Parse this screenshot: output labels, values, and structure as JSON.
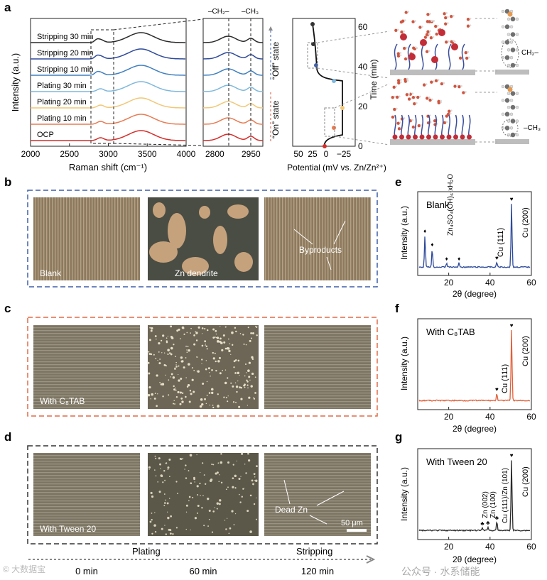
{
  "panel_letters": {
    "a": "a",
    "b": "b",
    "c": "c",
    "d": "d",
    "e": "e",
    "f": "f",
    "g": "g"
  },
  "panel_a": {
    "ylabel": "Intensity (a.u.)",
    "xlabel": "Raman shift (cm⁻¹)",
    "traces": [
      "Stripping 30 min",
      "Stripping 20 min",
      "Stripping 10 min",
      "Plating 30 min",
      "Plating 20 min",
      "Plating 10 min",
      "OCP"
    ],
    "trace_colors": [
      "#2a2a2a",
      "#2e4a9a",
      "#3f7fc0",
      "#7fb8dc",
      "#f2c777",
      "#e77b52",
      "#d42e2a"
    ],
    "xticks_main": [
      "2000",
      "2500",
      "3000",
      "3500",
      "4000"
    ],
    "xticks_zoom": [
      "2800",
      "2950"
    ],
    "ch2": "–CH₂–",
    "ch3": "–CH₃",
    "off_state": "“Off” state",
    "on_state": "“On” state",
    "potential_xlabel": "Potential (mV vs. Zn/Zn²⁺)",
    "potential_xticks": [
      "50",
      "25",
      "0",
      "−25"
    ],
    "time_label": "Time (min)",
    "time_ticks": [
      "0",
      "20",
      "40",
      "60"
    ],
    "ch2_annot": "CH₂–",
    "ch3_annot": "–CH₃"
  },
  "micrographs": {
    "blank": "Blank",
    "zn_dendrite": "Zn dendrite",
    "byproducts": "Byproducts",
    "c8tab": "With C₈TAB",
    "tween": "With Tween 20",
    "dead_zn": "Dead Zn",
    "scale": "50 μm"
  },
  "timeline": {
    "plating": "Plating",
    "stripping": "Stripping",
    "t0": "0 min",
    "t60": "60 min",
    "t120": "120 min"
  },
  "xrd": {
    "e": {
      "title": "Blank",
      "byproduct": "Zn₄SO₄(OH)₆·xH₂O",
      "cu111": "Cu (111)",
      "cu200": "Cu (200)",
      "color": "#2e4a9a"
    },
    "f": {
      "title": "With C₈TAB",
      "cu111": "Cu (111)",
      "cu200": "Cu (200)",
      "color": "#e0603a"
    },
    "g": {
      "title": "With Tween 20",
      "zn002": "Zn (002)",
      "zn100": "Zn (100)",
      "cu111zn101": "Cu (111)/Zn (101)",
      "cu200": "Cu (200)",
      "color": "#2a2a2a"
    },
    "ylabel": "Intensity (a.u.)",
    "xlabel": "2θ (degree)",
    "xticks": [
      "20",
      "40",
      "60"
    ]
  },
  "watermark": {
    "text": "公众号 · 水系储能",
    "corner": "© 大数据宝"
  },
  "chart_data": [
    {
      "type": "line",
      "title": "",
      "xlabel": "Raman shift (cm⁻¹)",
      "ylabel": "Intensity (a.u.)",
      "xlim": [
        2000,
        4000
      ],
      "series": [
        {
          "name": "OCP"
        },
        {
          "name": "Plating 10 min"
        },
        {
          "name": "Plating 20 min"
        },
        {
          "name": "Plating 30 min"
        },
        {
          "name": "Stripping 10 min"
        },
        {
          "name": "Stripping 20 min"
        },
        {
          "name": "Stripping 30 min"
        }
      ]
    },
    {
      "type": "line",
      "xlabel": "Potential (mV vs. Zn/Zn²⁺)",
      "ylabel": "Time (min)",
      "x": [
        0,
        -20,
        -20,
        -20,
        20,
        20
      ],
      "y": [
        0,
        10,
        20,
        30,
        40,
        60
      ]
    },
    {
      "type": "line",
      "title": "Blank",
      "xlabel": "2θ (degree)",
      "xlim": [
        5,
        60
      ],
      "peaks": [
        {
          "x": 8.5,
          "label": "♦"
        },
        {
          "x": 12,
          "label": "♦"
        },
        {
          "x": 43.3,
          "label": "Cu (111)"
        },
        {
          "x": 50.4,
          "label": "Cu (200)"
        }
      ]
    },
    {
      "type": "line",
      "title": "With C₈TAB",
      "xlabel": "2θ (degree)",
      "xlim": [
        5,
        60
      ],
      "peaks": [
        {
          "x": 43.3,
          "label": "Cu (111)"
        },
        {
          "x": 50.4,
          "label": "Cu (200)"
        }
      ]
    },
    {
      "type": "line",
      "title": "With Tween 20",
      "xlabel": "2θ (degree)",
      "xlim": [
        5,
        60
      ],
      "peaks": [
        {
          "x": 36.3,
          "label": "Zn (002)"
        },
        {
          "x": 39,
          "label": "Zn (100)"
        },
        {
          "x": 43.3,
          "label": "Cu (111)/Zn (101)"
        },
        {
          "x": 50.4,
          "label": "Cu (200)"
        }
      ]
    }
  ]
}
